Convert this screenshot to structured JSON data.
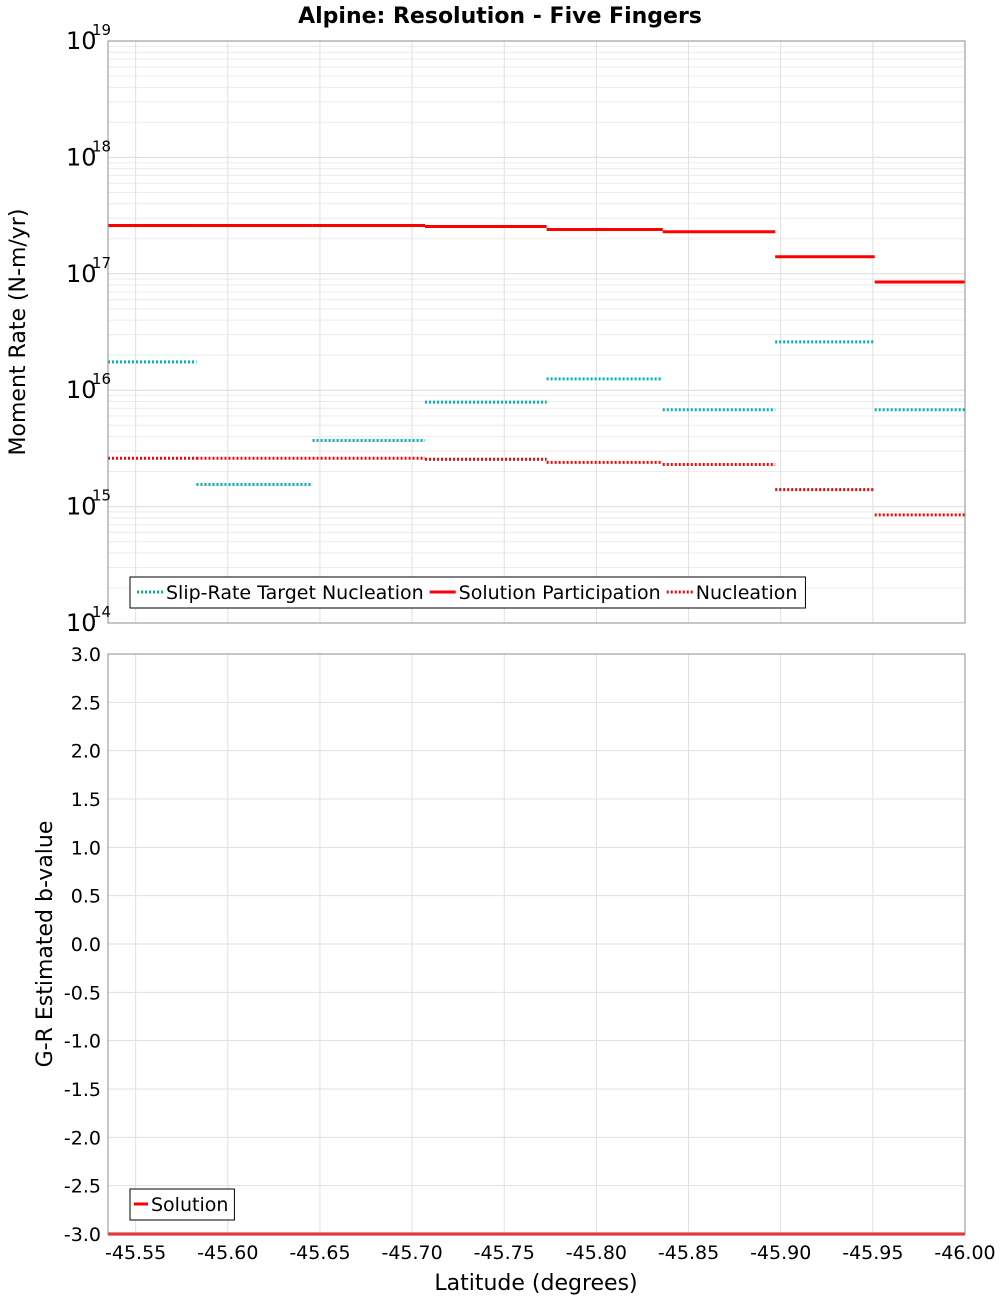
{
  "chart_data": [
    {
      "type": "line",
      "title": "Alpine: Resolution - Five Fingers",
      "xlabel": "",
      "ylabel": "Moment Rate (N-m/yr)",
      "yscale": "log",
      "xlim": [
        -45.535,
        -46.0
      ],
      "ylim": [
        100000000000000.0,
        1e+19
      ],
      "y_ticks": [
        {
          "base": "10",
          "exp": "14"
        },
        {
          "base": "10",
          "exp": "15"
        },
        {
          "base": "10",
          "exp": "16"
        },
        {
          "base": "10",
          "exp": "17"
        },
        {
          "base": "10",
          "exp": "18"
        },
        {
          "base": "10",
          "exp": "19"
        }
      ],
      "grid": true,
      "legend_position": "bottom-left",
      "series": [
        {
          "name": "Slip-Rate Target Nucleation",
          "color": "#00b4b4",
          "style": "dotted",
          "segments": [
            {
              "x": [
                -45.535,
                -45.583
              ],
              "y": 1.75e+16
            },
            {
              "x": [
                -45.583,
                -45.646
              ],
              "y": 1550000000000000.0
            },
            {
              "x": [
                -45.646,
                -45.707
              ],
              "y": 3700000000000000.0
            },
            {
              "x": [
                -45.707,
                -45.773
              ],
              "y": 7900000000000000.0
            },
            {
              "x": [
                -45.773,
                -45.836
              ],
              "y": 1.25e+16
            },
            {
              "x": [
                -45.836,
                -45.897
              ],
              "y": 6800000000000000.0
            },
            {
              "x": [
                -45.897,
                -45.951
              ],
              "y": 2.6e+16
            },
            {
              "x": [
                -45.951,
                -46.0
              ],
              "y": 6800000000000000.0
            }
          ]
        },
        {
          "name": "Solution Participation",
          "color": "#ff0000",
          "style": "solid",
          "segments": [
            {
              "x": [
                -45.535,
                -45.583
              ],
              "y": 2.6e+17
            },
            {
              "x": [
                -45.583,
                -45.646
              ],
              "y": 2.6e+17
            },
            {
              "x": [
                -45.646,
                -45.707
              ],
              "y": 2.6e+17
            },
            {
              "x": [
                -45.707,
                -45.773
              ],
              "y": 2.55e+17
            },
            {
              "x": [
                -45.773,
                -45.836
              ],
              "y": 2.4e+17
            },
            {
              "x": [
                -45.836,
                -45.897
              ],
              "y": 2.3e+17
            },
            {
              "x": [
                -45.897,
                -45.951
              ],
              "y": 1.4e+17
            },
            {
              "x": [
                -45.951,
                -46.0
              ],
              "y": 8.5e+16
            }
          ]
        },
        {
          "name": "Nucleation",
          "color": "#ff0000",
          "style": "dotted",
          "segments": [
            {
              "x": [
                -45.535,
                -45.583
              ],
              "y": 2600000000000000.0
            },
            {
              "x": [
                -45.583,
                -45.646
              ],
              "y": 2600000000000000.0
            },
            {
              "x": [
                -45.646,
                -45.707
              ],
              "y": 2600000000000000.0
            },
            {
              "x": [
                -45.707,
                -45.773
              ],
              "y": 2550000000000000.0
            },
            {
              "x": [
                -45.773,
                -45.836
              ],
              "y": 2400000000000000.0
            },
            {
              "x": [
                -45.836,
                -45.897
              ],
              "y": 2300000000000000.0
            },
            {
              "x": [
                -45.897,
                -45.951
              ],
              "y": 1400000000000000.0
            },
            {
              "x": [
                -45.951,
                -46.0
              ],
              "y": 850000000000000.0
            }
          ]
        }
      ]
    },
    {
      "type": "line",
      "title": "",
      "xlabel": "Latitude (degrees)",
      "ylabel": "G-R Estimated b-value",
      "xlim": [
        -45.535,
        -46.0
      ],
      "ylim": [
        -3.0,
        3.0
      ],
      "x_ticks": [
        "-45.55",
        "-45.60",
        "-45.65",
        "-45.70",
        "-45.75",
        "-45.80",
        "-45.85",
        "-45.90",
        "-45.95",
        "-46.00"
      ],
      "y_ticks": [
        "3.0",
        "2.5",
        "2.0",
        "1.5",
        "1.0",
        "0.5",
        "0.0",
        "-0.5",
        "-1.0",
        "-1.5",
        "-2.0",
        "-2.5",
        "-3.0"
      ],
      "grid": true,
      "legend_position": "bottom-left",
      "series": [
        {
          "name": "Solution",
          "color": "#ff0000",
          "style": "solid",
          "segments": [
            {
              "x": [
                -45.535,
                -46.0
              ],
              "y": -3.0
            }
          ]
        }
      ]
    }
  ]
}
